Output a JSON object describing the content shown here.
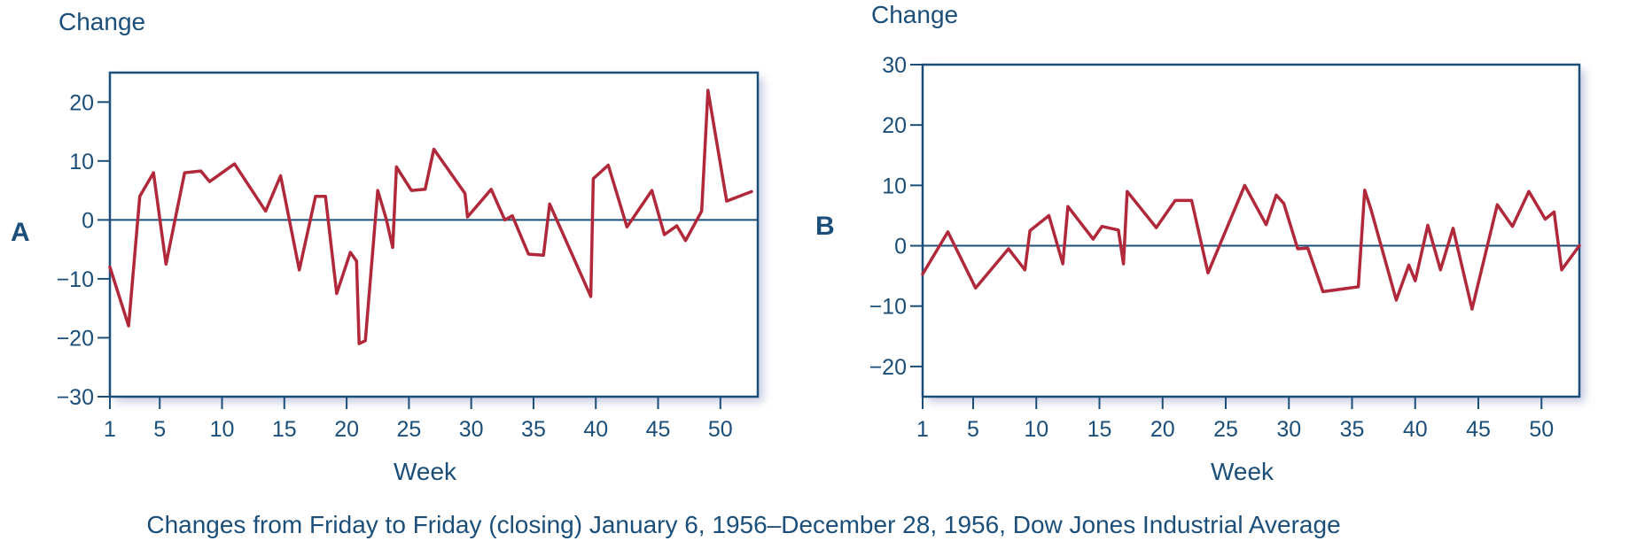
{
  "caption": "Changes from Friday to Friday (closing) January 6, 1956–December 28, 1956, Dow Jones Industrial Average",
  "colors": {
    "axis": "#1b4f7a",
    "line": "#b0283a",
    "shadow": "#c5cbe0"
  },
  "chart_data": [
    {
      "type": "line",
      "panel_label": "A",
      "ylabel": "Change",
      "xlabel": "Week",
      "xlim": [
        1,
        53
      ],
      "ylim": [
        -30,
        25
      ],
      "xticks": [
        1,
        5,
        10,
        15,
        20,
        25,
        30,
        35,
        40,
        45,
        50
      ],
      "yticks": [
        20,
        10,
        0,
        -10,
        -20,
        -30
      ],
      "ytick_labels": [
        "20",
        "10",
        "0",
        "−10",
        "−20",
        "−30"
      ],
      "grid": false,
      "zero_line": true,
      "series": [
        {
          "x": [
            1,
            2.5,
            3.4,
            4.5,
            5.5,
            7,
            8.3,
            9,
            11,
            13.5,
            14.7,
            16.2,
            17.5,
            18.3,
            19.2,
            20.3,
            20.8,
            21,
            21.5,
            22.5,
            23.2,
            23.7,
            24,
            25.2,
            26.3,
            27,
            29.5,
            29.7,
            31.6,
            32.7,
            33.3,
            34.6,
            35.8,
            36.3,
            39.6,
            39.8,
            41,
            42.5,
            44.5,
            45.5,
            46.5,
            47.2,
            48.5,
            49,
            50.5,
            52.5
          ],
          "y": [
            -8,
            -18,
            4,
            8,
            -7.5,
            8,
            8.3,
            6.5,
            9.5,
            1.5,
            7.5,
            -8.5,
            4,
            4,
            -12.5,
            -5.5,
            -7,
            -21,
            -20.5,
            5,
            0,
            -4.7,
            9,
            5,
            5.2,
            12,
            4.5,
            0.5,
            5.2,
            0,
            0.7,
            -5.8,
            -6,
            2.7,
            -13,
            7,
            9.3,
            -1.2,
            5,
            -2.5,
            -1,
            -3.5,
            1.5,
            22,
            3.2,
            4.8
          ]
        }
      ]
    },
    {
      "type": "line",
      "panel_label": "B",
      "ylabel": "Change",
      "xlabel": "Week",
      "xlim": [
        1,
        53
      ],
      "ylim": [
        -25,
        30
      ],
      "xticks": [
        1,
        5,
        10,
        15,
        20,
        25,
        30,
        35,
        40,
        45,
        50
      ],
      "yticks": [
        30,
        20,
        10,
        0,
        -10,
        -20
      ],
      "ytick_labels": [
        "30",
        "20",
        "10",
        "0",
        "−10",
        "−20"
      ],
      "grid": false,
      "zero_line": true,
      "series": [
        {
          "x": [
            1,
            3,
            5.2,
            7.8,
            9.1,
            9.5,
            11,
            12.1,
            12.5,
            14.5,
            15.2,
            16.5,
            16.9,
            17.2,
            19.5,
            21,
            22.3,
            23.6,
            26.5,
            28.2,
            29,
            29.6,
            30.7,
            31.5,
            32.7,
            35.5,
            36,
            36.5,
            38.5,
            39.5,
            40,
            41,
            42,
            43,
            44.5,
            46.5,
            47.7,
            49,
            50.3,
            51,
            51.6,
            53
          ],
          "y": [
            -4.7,
            2.3,
            -7,
            -0.5,
            -4,
            2.5,
            5,
            -3,
            6.5,
            1.1,
            3.2,
            2.6,
            -3,
            9,
            3,
            7.5,
            7.5,
            -4.5,
            10,
            3.5,
            8.4,
            7,
            -0.5,
            -0.4,
            -7.6,
            -6.8,
            9.2,
            6,
            -9,
            -3.2,
            -5.8,
            3.4,
            -4,
            2.9,
            -10.5,
            6.8,
            3.2,
            9,
            4.4,
            5.6,
            -4,
            0
          ]
        }
      ]
    }
  ]
}
